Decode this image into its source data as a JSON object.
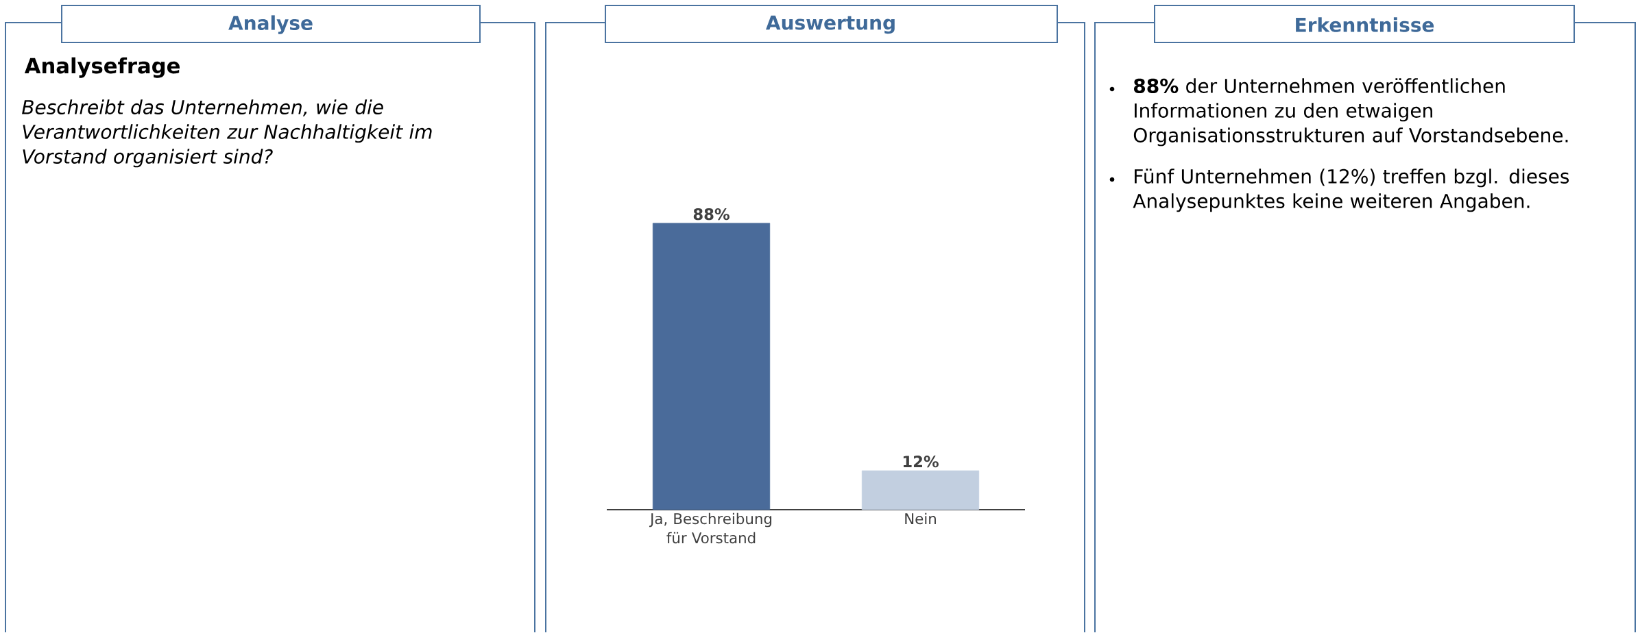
{
  "chart_data": {
    "type": "bar",
    "title": "Auswertung",
    "categories": [
      "Ja, Beschreibung für Vorstand",
      "Nein"
    ],
    "values": [
      88,
      12
    ],
    "value_labels": [
      "88%",
      "12%"
    ],
    "colors": [
      "#4a6b9a",
      "#c2cfe0"
    ],
    "annotations": [
      "Analyse",
      "Analysefrage",
      "Beschreibt das Unternehmen, wie die Verantwortlichkeiten zur Nachhaltigkeit im Vorstand organisiert sind?",
      "Erkenntnisse",
      "**88%** der Unternehmen veröffentlichen Informationen zu den etwaigen Organisationsstrukturen auf Vorstandsebene.",
      "Fünf Unternehmen (12%) treffen bzgl. dieses Analysepunktes keine weiteren Angaben."
    ]
  }
}
